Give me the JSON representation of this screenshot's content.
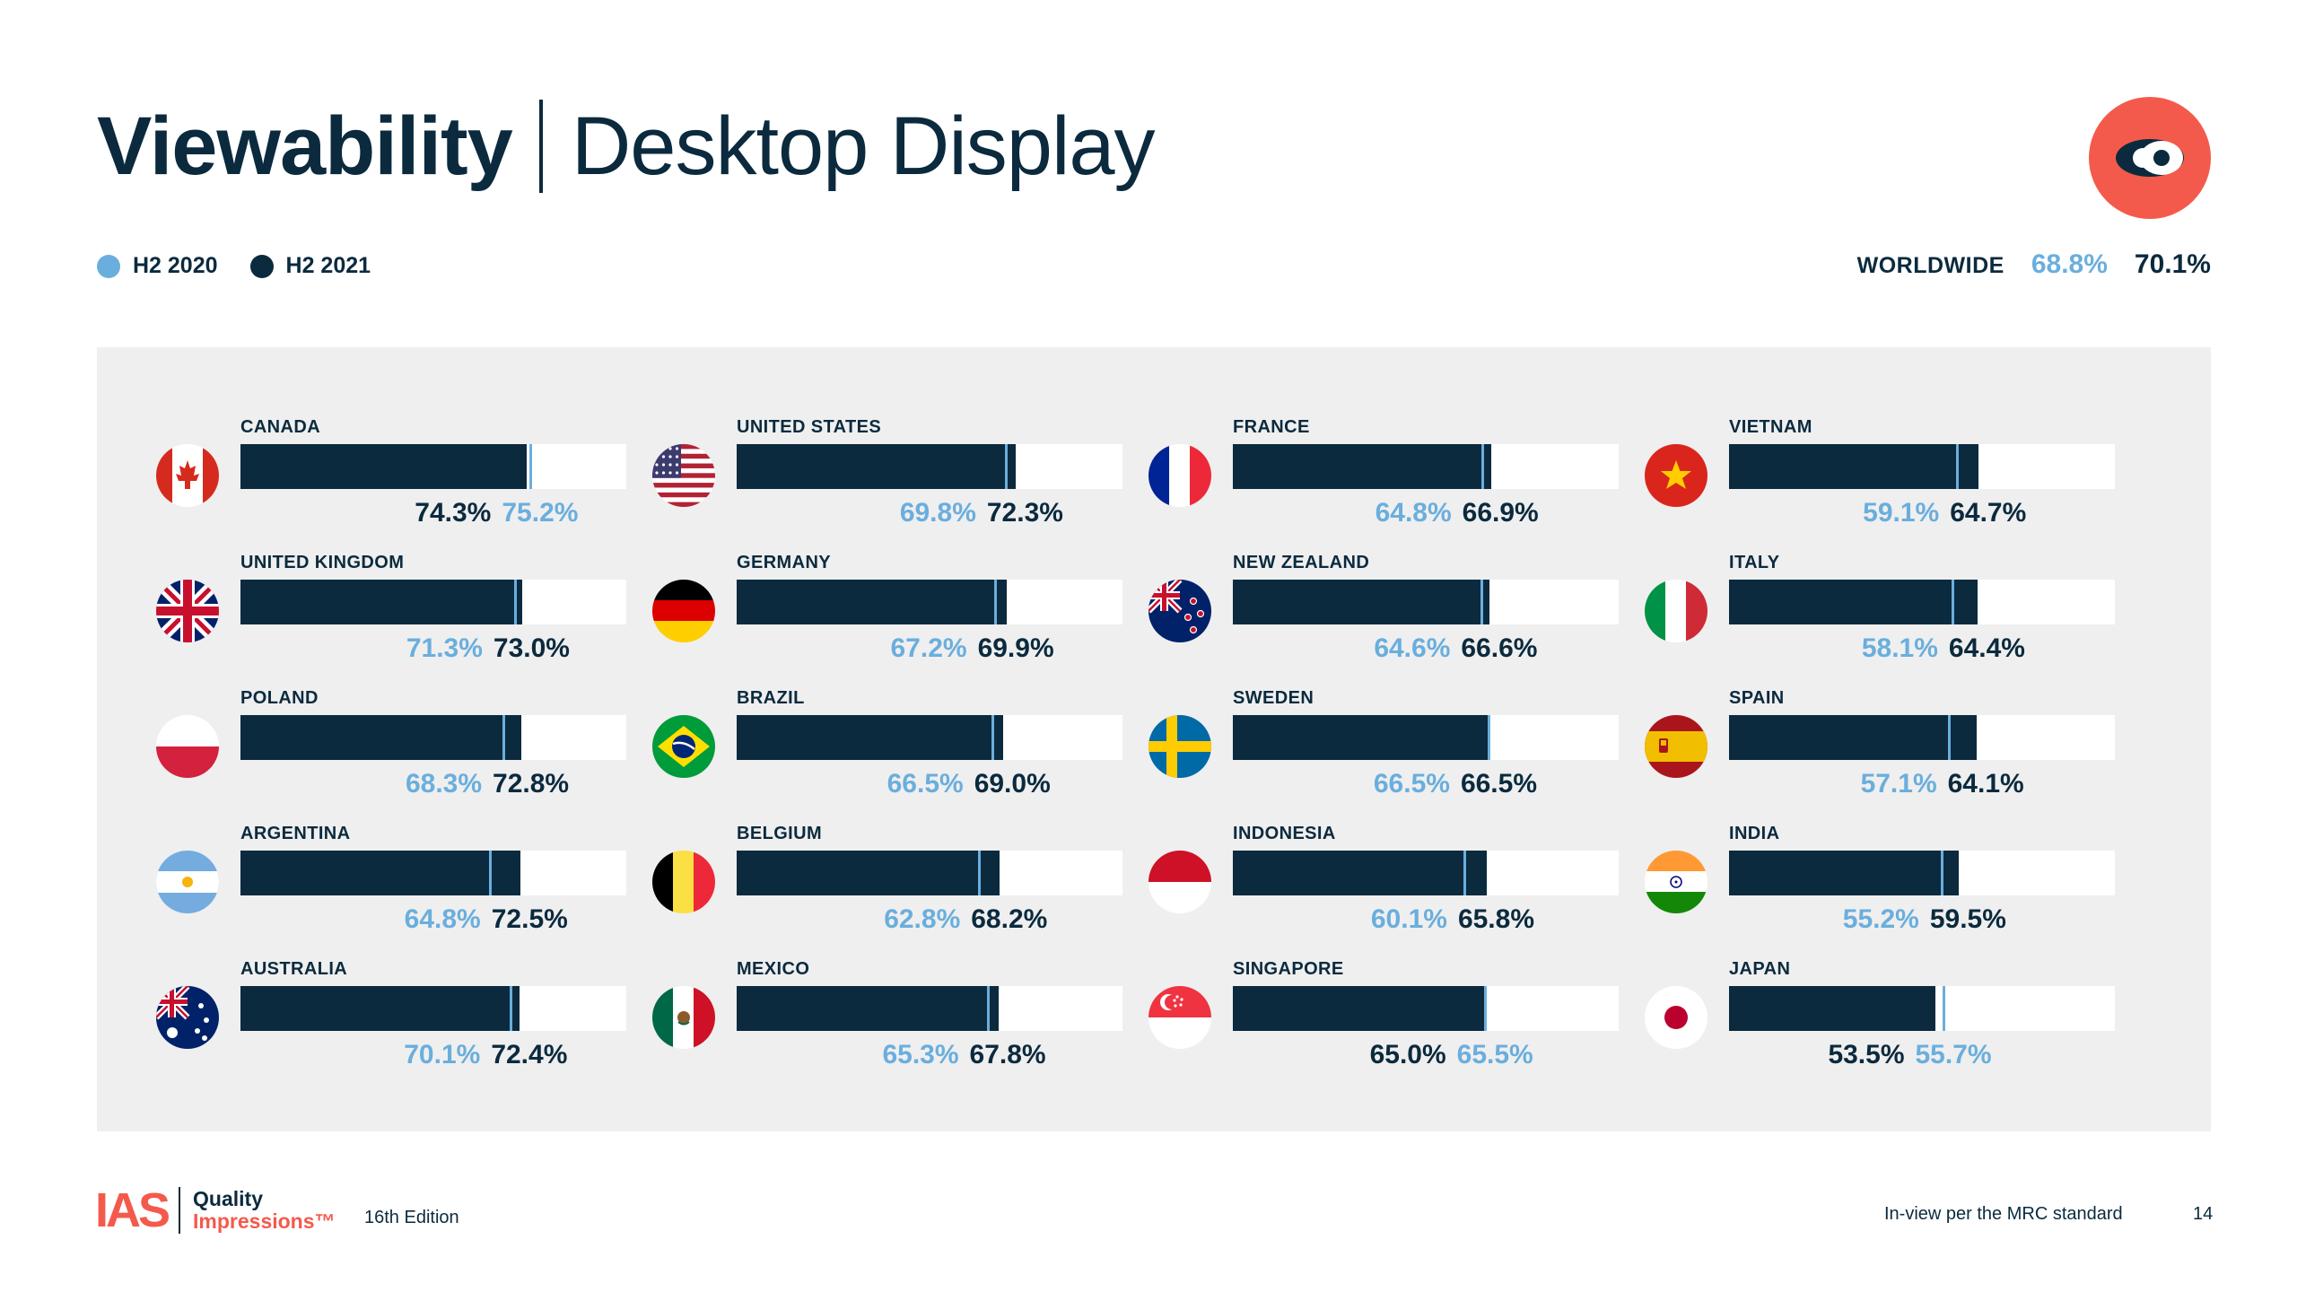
{
  "header": {
    "title_main": "Viewability",
    "title_sub": "Desktop Display"
  },
  "legend": [
    {
      "label": "H2 2020",
      "color": "#6aaedd"
    },
    {
      "label": "H2 2021",
      "color": "#0b2a3e"
    }
  ],
  "worldwide": {
    "label": "WORLDWIDE",
    "h2_2020": "68.8%",
    "h2_2021": "70.1%"
  },
  "colors": {
    "navy": "#0b2a3e",
    "light_blue": "#6aaedd",
    "brand_red": "#f45a4b",
    "panel_gray": "#efefef"
  },
  "chart_data": {
    "type": "bar",
    "orientation": "horizontal",
    "series_names": [
      "H2 2020",
      "H2 2021"
    ],
    "xlim": [
      0,
      100
    ],
    "grid": false,
    "legend_position": "top-left",
    "countries": [
      {
        "name": "CANADA",
        "flag": "canada-flag-icon",
        "h2_2020": 75.2,
        "h2_2021": 74.3
      },
      {
        "name": "UNITED KINGDOM",
        "flag": "uk-flag-icon",
        "h2_2020": 71.3,
        "h2_2021": 73.0
      },
      {
        "name": "POLAND",
        "flag": "poland-flag-icon",
        "h2_2020": 68.3,
        "h2_2021": 72.8
      },
      {
        "name": "ARGENTINA",
        "flag": "argentina-flag-icon",
        "h2_2020": 64.8,
        "h2_2021": 72.5
      },
      {
        "name": "AUSTRALIA",
        "flag": "australia-flag-icon",
        "h2_2020": 70.1,
        "h2_2021": 72.4
      },
      {
        "name": "UNITED STATES",
        "flag": "usa-flag-icon",
        "h2_2020": 69.8,
        "h2_2021": 72.3
      },
      {
        "name": "GERMANY",
        "flag": "germany-flag-icon",
        "h2_2020": 67.2,
        "h2_2021": 69.9
      },
      {
        "name": "BRAZIL",
        "flag": "brazil-flag-icon",
        "h2_2020": 66.5,
        "h2_2021": 69.0
      },
      {
        "name": "BELGIUM",
        "flag": "belgium-flag-icon",
        "h2_2020": 62.8,
        "h2_2021": 68.2
      },
      {
        "name": "MEXICO",
        "flag": "mexico-flag-icon",
        "h2_2020": 65.3,
        "h2_2021": 67.8
      },
      {
        "name": "FRANCE",
        "flag": "france-flag-icon",
        "h2_2020": 64.8,
        "h2_2021": 66.9
      },
      {
        "name": "NEW ZEALAND",
        "flag": "new-zealand-flag-icon",
        "h2_2020": 64.6,
        "h2_2021": 66.6
      },
      {
        "name": "SWEDEN",
        "flag": "sweden-flag-icon",
        "h2_2020": 66.5,
        "h2_2021": 66.5
      },
      {
        "name": "INDONESIA",
        "flag": "indonesia-flag-icon",
        "h2_2020": 60.1,
        "h2_2021": 65.8
      },
      {
        "name": "SINGAPORE",
        "flag": "singapore-flag-icon",
        "h2_2020": 65.5,
        "h2_2021": 65.0
      },
      {
        "name": "VIETNAM",
        "flag": "vietnam-flag-icon",
        "h2_2020": 59.1,
        "h2_2021": 64.7
      },
      {
        "name": "ITALY",
        "flag": "italy-flag-icon",
        "h2_2020": 58.1,
        "h2_2021": 64.4
      },
      {
        "name": "SPAIN",
        "flag": "spain-flag-icon",
        "h2_2020": 57.1,
        "h2_2021": 64.1
      },
      {
        "name": "INDIA",
        "flag": "india-flag-icon",
        "h2_2020": 55.2,
        "h2_2021": 59.5
      },
      {
        "name": "JAPAN",
        "flag": "japan-flag-icon",
        "h2_2020": 55.7,
        "h2_2021": 53.5
      }
    ]
  },
  "footer": {
    "brand": "IAS",
    "product_line1": "Quality",
    "product_line2": "Impressions™",
    "edition": "16th Edition",
    "footnote": "In-view per the MRC standard",
    "page": "14"
  }
}
